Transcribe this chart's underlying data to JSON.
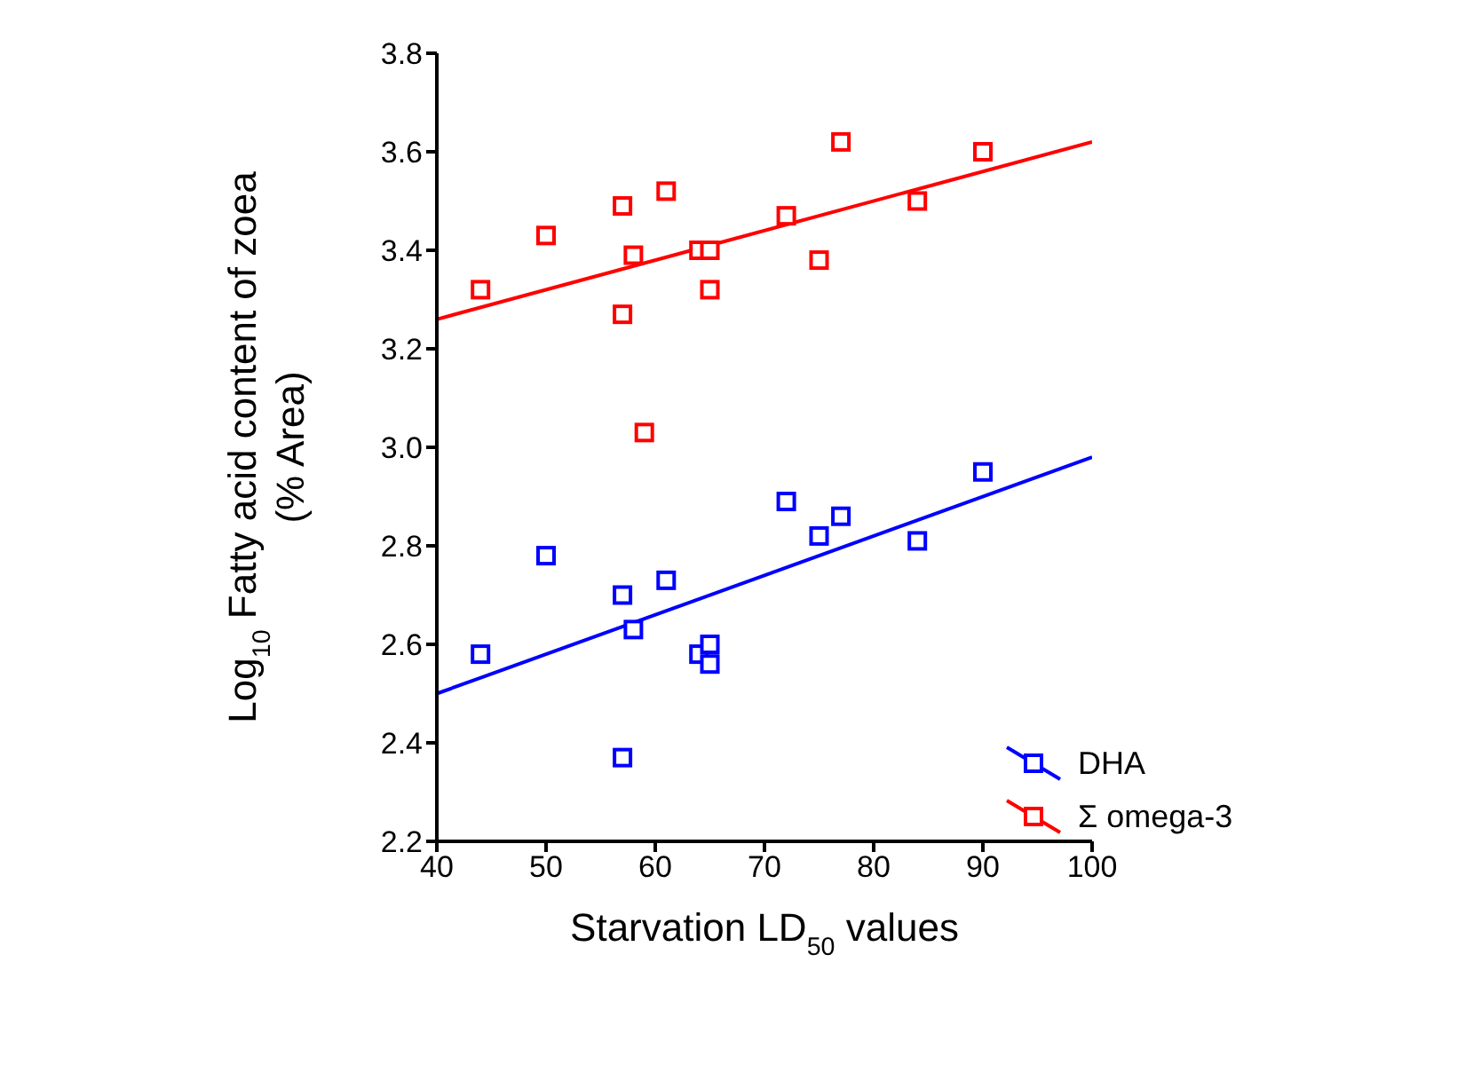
{
  "chart_data": {
    "type": "scatter",
    "xlabel": "Starvation LD$_{50}$ values",
    "ylabel": "Log$_{10}$ Fatty acid content of zoea\n(% Area)",
    "xlim": [
      40,
      100
    ],
    "xticks": [
      40,
      50,
      60,
      70,
      80,
      90,
      100
    ],
    "ylim": [
      2.2,
      3.8
    ],
    "yticks": [
      2.2,
      2.4,
      2.6,
      2.8,
      {
        "value": 3,
        "label": "3.0"
      },
      3.2,
      3.4,
      3.6,
      3.8
    ],
    "legend": "bottom right",
    "series": [
      {
        "name": "DHA",
        "marker": "square",
        "color": "#0000ff",
        "x": [
          44,
          50,
          57,
          57,
          58,
          61,
          64,
          65,
          65,
          72,
          75,
          77,
          84,
          90
        ],
        "values": [
          2.58,
          2.78,
          2.7,
          2.37,
          2.63,
          2.73,
          2.58,
          2.6,
          2.56,
          2.89,
          2.82,
          2.86,
          2.81,
          2.95
        ]
      },
      {
        "name": "Σ omega-3",
        "marker": "square",
        "color": "#ff0000",
        "x": [
          44,
          50,
          57,
          57,
          58,
          59,
          61,
          64,
          65,
          65,
          72,
          75,
          77,
          84,
          90
        ],
        "values": [
          3.32,
          3.43,
          3.49,
          3.27,
          3.39,
          3.03,
          3.52,
          3.4,
          3.4,
          3.32,
          3.47,
          3.38,
          3.62,
          3.5,
          3.6
        ]
      },
      {
        "type": "line",
        "color": "#0000ff",
        "x": [
          40,
          100
        ],
        "values": [
          2.5,
          2.98
        ]
      },
      {
        "type": "line",
        "color": "#ff0000",
        "x": [
          40,
          100
        ],
        "values": [
          3.26,
          3.62
        ]
      }
    ]
  }
}
